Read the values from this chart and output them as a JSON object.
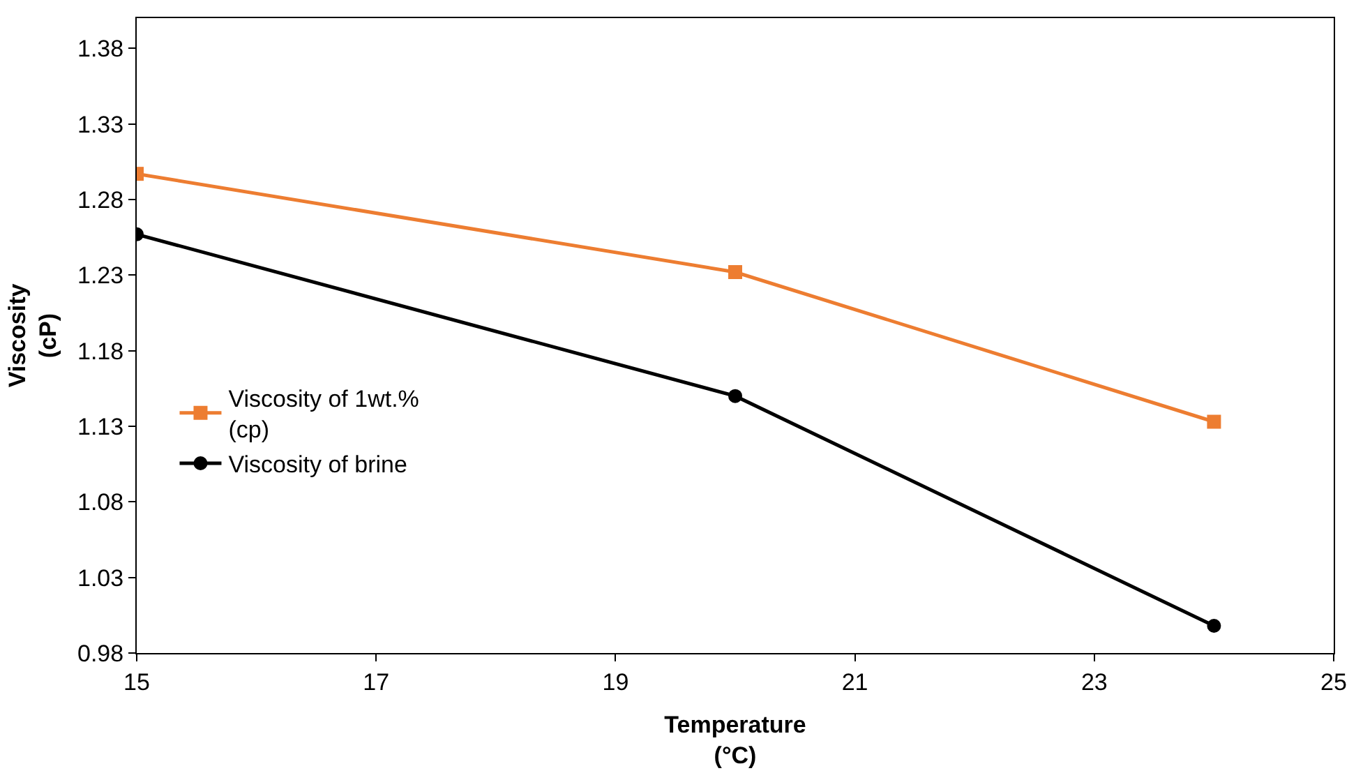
{
  "chart_data": {
    "type": "line",
    "xlabel": "Temperature\n(°C)",
    "ylabel": "Viscosity\n(cP)",
    "xlim": [
      15,
      25
    ],
    "xticks": [
      15,
      17,
      19,
      21,
      23,
      25
    ],
    "ylim": [
      0.98,
      1.4
    ],
    "yticks": [
      0.98,
      1.03,
      1.08,
      1.13,
      1.18,
      1.23,
      1.28,
      1.33,
      1.38
    ],
    "legend": "left",
    "series": [
      {
        "name": "Viscosity of 1wt.%\n(cp)",
        "color": "#ed7d31",
        "marker": "square",
        "x": [
          15,
          20,
          24
        ],
        "values": [
          1.297,
          1.232,
          1.133
        ]
      },
      {
        "name": "Viscosity of brine",
        "color": "#000000",
        "marker": "circle",
        "x": [
          15,
          20,
          24
        ],
        "values": [
          1.257,
          1.15,
          0.998
        ]
      }
    ]
  }
}
